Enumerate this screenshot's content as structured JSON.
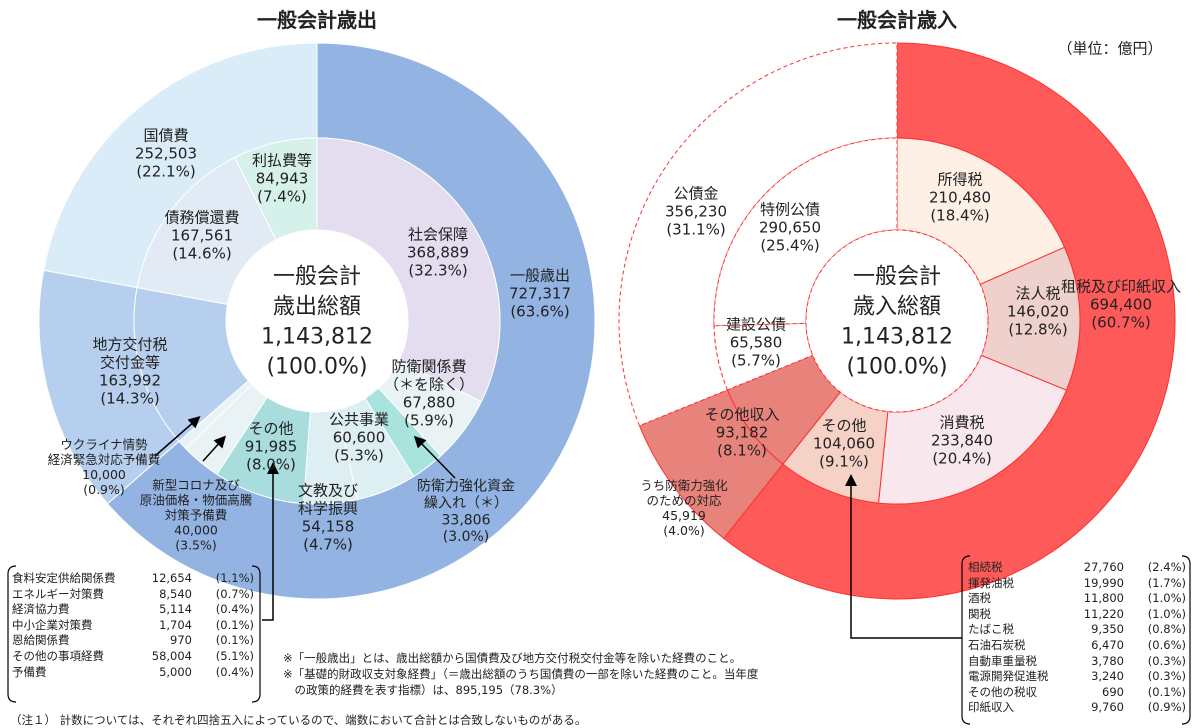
{
  "chart_data": [
    {
      "type": "pie",
      "title": "一般会計歳出",
      "center": [
        "一般会計",
        "歳出総額",
        "1,143,812",
        "(100.0%)"
      ],
      "outer_ring": [
        {
          "name": "一般歳出",
          "value": 727317,
          "label": [
            "一般歳出",
            "727,317",
            "(63.6%)"
          ]
        },
        {
          "name": "地方交付税交付金等",
          "value": 163992,
          "label": [
            "地方交付税",
            "交付金等",
            "163,992",
            "(14.3%)"
          ]
        },
        {
          "name": "国債費",
          "value": 252503,
          "label": [
            "国債費",
            "252,503",
            "(22.1%)"
          ]
        }
      ],
      "inner_ring": [
        {
          "name": "社会保障",
          "value": 368889,
          "label": [
            "社会保障",
            "368,889",
            "(32.3%)"
          ]
        },
        {
          "name": "防衛関係費",
          "value": 67880,
          "label": [
            "防衛関係費",
            "（＊を除く）",
            "67,880",
            "(5.9%)"
          ]
        },
        {
          "name": "防衛力強化資金繰入れ",
          "value": 33806,
          "label": [
            "防衛力強化資金",
            "繰入れ（＊）",
            "33,806",
            "(3.0%)"
          ]
        },
        {
          "name": "公共事業",
          "value": 60600,
          "label": [
            "公共事業",
            "60,600",
            "(5.3%)"
          ]
        },
        {
          "name": "文教及び科学振興",
          "value": 54158,
          "label": [
            "文教及び",
            "科学振興",
            "54,158",
            "(4.7%)"
          ]
        },
        {
          "name": "その他",
          "value": 91985,
          "label": [
            "その他",
            "91,985",
            "(8.0%)"
          ]
        },
        {
          "name": "新型コロナ及び原油価格・物価高騰対策予備費",
          "value": 40000,
          "label": [
            "新型コロナ及び",
            "原油価格・物価高騰",
            "対策予備費",
            "40,000",
            "(3.5%)"
          ]
        },
        {
          "name": "ウクライナ情勢経済緊急対応予備費",
          "value": 10000,
          "label": [
            "ウクライナ情勢",
            "経済緊急対応予備費",
            "10,000",
            "(0.9%)"
          ]
        },
        {
          "name": "地方交付税交付金等",
          "value": 163992,
          "label": []
        },
        {
          "name": "債務償還費",
          "value": 167561,
          "label": [
            "債務償還費",
            "167,561",
            "(14.6%)"
          ]
        },
        {
          "name": "利払費等",
          "value": 84943,
          "label": [
            "利払費等",
            "84,943",
            "(7.4%)"
          ]
        }
      ],
      "breakdown_table": [
        {
          "name": "食料安定供給関係費",
          "value": "12,654",
          "pct": "(1.1%)"
        },
        {
          "name": "エネルギー対策費",
          "value": "8,540",
          "pct": "(0.7%)"
        },
        {
          "name": "経済協力費",
          "value": "5,114",
          "pct": "(0.4%)"
        },
        {
          "name": "中小企業対策費",
          "value": "1,704",
          "pct": "(0.1%)"
        },
        {
          "name": "恩給関係費",
          "value": "970",
          "pct": "(0.1%)"
        },
        {
          "name": "その他の事項経費",
          "value": "58,004",
          "pct": "(5.1%)"
        },
        {
          "name": "予備費",
          "value": "5,000",
          "pct": "(0.4%)"
        }
      ]
    },
    {
      "type": "pie",
      "title": "一般会計歳入",
      "unit": "（単位：億円）",
      "center": [
        "一般会計",
        "歳入総額",
        "1,143,812",
        "(100.0%)"
      ],
      "outer_ring": [
        {
          "name": "租税及び印紙収入",
          "value": 694400,
          "label": [
            "租税及び印紙収入",
            "694,400",
            "(60.7%)"
          ]
        },
        {
          "name": "その他収入",
          "value": 93182,
          "label": [
            "その他収入",
            "93,182",
            "(8.1%)"
          ]
        },
        {
          "name": "公債金",
          "value": 356230,
          "label": [
            "公債金",
            "356,230",
            "(31.1%)"
          ]
        }
      ],
      "inner_ring": [
        {
          "name": "所得税",
          "value": 210480,
          "label": [
            "所得税",
            "210,480",
            "(18.4%)"
          ]
        },
        {
          "name": "法人税",
          "value": 146020,
          "label": [
            "法人税",
            "146,020",
            "(12.8%)"
          ]
        },
        {
          "name": "消費税",
          "value": 233840,
          "label": [
            "消費税",
            "233,840",
            "(20.4%)"
          ]
        },
        {
          "name": "その他",
          "value": 104060,
          "label": [
            "その他",
            "104,060",
            "(9.1%)"
          ]
        },
        {
          "name": "その他収入",
          "value": 93182,
          "label": []
        },
        {
          "name": "建設公債",
          "value": 65580,
          "label": [
            "建設公債",
            "65,580",
            "(5.7%)"
          ]
        },
        {
          "name": "特例公債",
          "value": 290650,
          "label": [
            "特例公債",
            "290,650",
            "(25.4%)"
          ]
        }
      ],
      "annotation": [
        "うち防衛力強化",
        "のための対応",
        "45,919",
        "(4.0%)"
      ],
      "breakdown_table": [
        {
          "name": "相続税",
          "value": "27,760",
          "pct": "(2.4%)"
        },
        {
          "name": "揮発油税",
          "value": "19,990",
          "pct": "(1.7%)"
        },
        {
          "name": "酒税",
          "value": "11,800",
          "pct": "(1.0%)"
        },
        {
          "name": "関税",
          "value": "11,220",
          "pct": "(1.0%)"
        },
        {
          "name": "たばこ税",
          "value": "9,350",
          "pct": "(0.8%)"
        },
        {
          "name": "石油石炭税",
          "value": "6,470",
          "pct": "(0.6%)"
        },
        {
          "name": "自動車重量税",
          "value": "3,780",
          "pct": "(0.3%)"
        },
        {
          "name": "電源開発促進税",
          "value": "3,240",
          "pct": "(0.3%)"
        },
        {
          "name": "その他の税収",
          "value": "690",
          "pct": "(0.1%)"
        },
        {
          "name": "印紙収入",
          "value": "9,760",
          "pct": "(0.9%)"
        }
      ]
    }
  ],
  "notes": [
    "※「一般歳出」とは、歳出総額から国債費及び地方交付税交付金等を除いた経費のこと。",
    "※「基礎的財政収支対象経費」（＝歳出総額のうち国債費の一部を除いた経費のこと。当年度",
    "　の政策的経費を表す指標）は、895,195（78.3%）"
  ],
  "footnote": "（注１） 計数については、それぞれ四捨五入によっているので、端数において合計とは合致しないものがある。",
  "colors": {
    "exp_outer": [
      "#93b4e3",
      "#b7cfee",
      "#d9ecf7"
    ],
    "exp_inner": [
      "#e4ddf0",
      "#e9f3f6",
      "#a9e3dd",
      "#ddeff3",
      "#ddeff3",
      "#a9dcdc",
      "#e9f3f6",
      "#e9f3f6",
      "#b7cfee",
      "#e2ebf5",
      "#d6f1ea"
    ],
    "rev_outer": [
      "#ff5a5a",
      "#e8837c",
      "#ffffff"
    ],
    "rev_inner": [
      "#fff0e6",
      "#eed0cc",
      "#f8e8ee",
      "#f6d1c6",
      "#e8837c",
      "#ffffff",
      "#ffffff"
    ]
  }
}
